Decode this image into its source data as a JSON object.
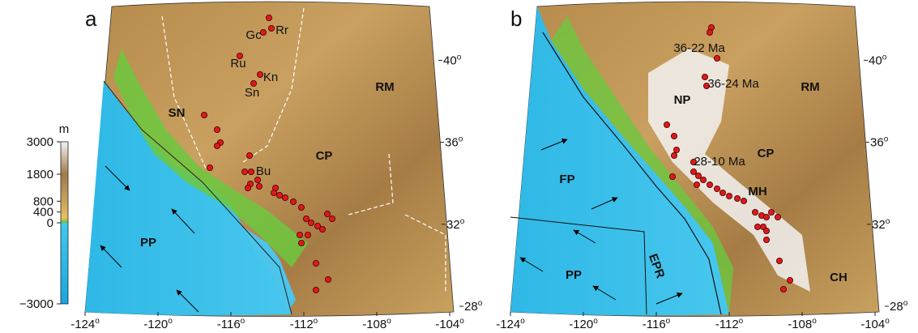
{
  "degree_symbol": "o",
  "colorbar": {
    "unit": "m",
    "ticks": [
      3000,
      1800,
      800,
      400,
      0,
      {
        "value": -3000,
        "label": "−3000"
      }
    ]
  },
  "panels": [
    {
      "label": "a",
      "lon_ticks": [
        -124,
        -120,
        -116,
        -112,
        -108,
        -104
      ],
      "lat_ticks": [
        40,
        36,
        32,
        28
      ],
      "places": [
        "Gc",
        "Rr",
        "Ru",
        "Kn",
        "Sn",
        "SN",
        "RM",
        "CP",
        "Bu",
        "PP"
      ]
    },
    {
      "label": "b",
      "lon_ticks": [
        -124,
        -120,
        -116,
        -112,
        -108,
        -104
      ],
      "lat_ticks": [
        40,
        36,
        32,
        28
      ],
      "places": [
        "36-22 Ma",
        "36-24 Ma",
        "NP",
        "RM",
        "CP",
        "28-10 Ma",
        "MH",
        "FP",
        "PP",
        "EPR",
        "CH"
      ]
    }
  ]
}
